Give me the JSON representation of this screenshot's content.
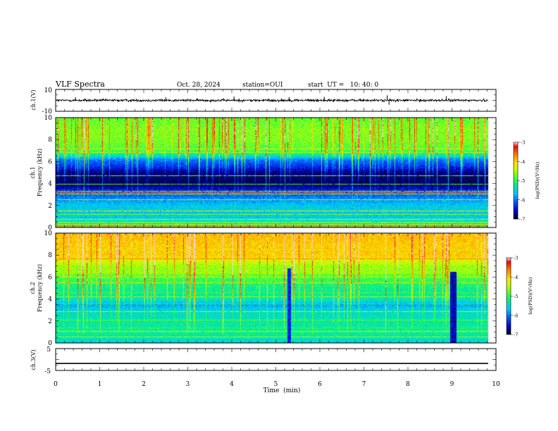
{
  "header": {
    "title": "VLF Spectra",
    "date": "Oct. 28, 2024",
    "station": "station=OUI",
    "start": "start  UT =   10: 40: 0"
  },
  "colors": {
    "frame": "#000000",
    "colormap": [
      "#000033",
      "#0000c8",
      "#0060ff",
      "#00c8ff",
      "#00e0a0",
      "#40ff40",
      "#c8ff00",
      "#ffe000",
      "#ff8000",
      "#ff0000",
      "#ffffff"
    ]
  },
  "chart_data": [
    {
      "type": "line",
      "name": "ch1-waveform",
      "ylabel": "ch.1(V)",
      "ylim": [
        -10,
        10
      ],
      "yticks": [
        "10",
        "-10"
      ],
      "xlim": [
        0,
        10
      ],
      "trace": {
        "x_start": 0,
        "x_end": 9.82,
        "mean": 0,
        "amplitude": 1.5
      },
      "spikes": [
        {
          "x": 4.05,
          "y": 3.5
        },
        {
          "x": 5.3,
          "y": 3.0
        },
        {
          "x": 7.53,
          "y": 4.6
        },
        {
          "x": 7.57,
          "y": -4.0
        },
        {
          "x": 8.87,
          "y": 3.8
        },
        {
          "x": 0.45,
          "y": 3.0
        },
        {
          "x": 2.5,
          "y": 2.8
        },
        {
          "x": 6.1,
          "y": 3.2
        }
      ]
    },
    {
      "type": "heatmap",
      "name": "ch1-spectrogram",
      "ylabel": "Frequency (kHz)",
      "ylabel_prefix": "ch.1",
      "xlim": [
        0,
        10
      ],
      "ylim": [
        0,
        10
      ],
      "yticks": [
        "0",
        "2",
        "4",
        "6",
        "8",
        "10"
      ],
      "data_end_min": 9.82,
      "profile_log_psd": [
        {
          "f": 0,
          "v": -5.0
        },
        {
          "f": 1.0,
          "v": -5.6
        },
        {
          "f": 2.0,
          "v": -5.6
        },
        {
          "f": 3.0,
          "v": -6.1
        },
        {
          "f": 4.0,
          "v": -6.9
        },
        {
          "f": 5.0,
          "v": -6.8
        },
        {
          "f": 5.5,
          "v": -6.4
        },
        {
          "f": 6.2,
          "v": -6.0
        },
        {
          "f": 6.6,
          "v": -5.3
        },
        {
          "f": 7.0,
          "v": -4.9
        },
        {
          "f": 8.0,
          "v": -4.7
        },
        {
          "f": 9.0,
          "v": -4.7
        },
        {
          "f": 10.0,
          "v": -4.8
        }
      ],
      "lines": [
        {
          "f": 0.1,
          "v": -3.6
        },
        {
          "f": 0.3,
          "v": -4.0
        },
        {
          "f": 0.5,
          "v": -4.4
        },
        {
          "f": 0.75,
          "v": -4.2
        },
        {
          "f": 1.25,
          "v": -4.6
        },
        {
          "f": 1.55,
          "v": -4.4
        },
        {
          "f": 2.55,
          "v": -4.2
        },
        {
          "f": 3.05,
          "v": -4.4
        },
        {
          "f": 3.2,
          "v": -3.7
        },
        {
          "f": 3.35,
          "v": -4.6
        },
        {
          "f": 4.0,
          "v": -4.9
        },
        {
          "f": 4.75,
          "v": -4.8
        },
        {
          "f": 6.85,
          "v": -4.5
        },
        {
          "f": 7.2,
          "v": -4.3
        },
        {
          "f": 8.9,
          "v": -4.6
        }
      ],
      "colorbar": {
        "label": "log(PSD)(V²/Hz)",
        "range": [
          -7,
          -3
        ],
        "ticks": [
          "-3",
          "-4",
          "-5",
          "-6",
          "-7"
        ]
      }
    },
    {
      "type": "heatmap",
      "name": "ch2-spectrogram",
      "ylabel": "Frequency (kHz)",
      "ylabel_prefix": "ch.2",
      "xlim": [
        0,
        10
      ],
      "ylim": [
        0,
        10
      ],
      "yticks": [
        "0",
        "2",
        "4",
        "6",
        "8",
        "10"
      ],
      "data_end_min": 9.82,
      "profile_log_psd": [
        {
          "f": 0,
          "v": -5.5
        },
        {
          "f": 1.0,
          "v": -5.2
        },
        {
          "f": 2.0,
          "v": -5.3
        },
        {
          "f": 3.0,
          "v": -5.5
        },
        {
          "f": 3.5,
          "v": -5.8
        },
        {
          "f": 4.0,
          "v": -5.3
        },
        {
          "f": 5.0,
          "v": -5.2
        },
        {
          "f": 6.0,
          "v": -4.9
        },
        {
          "f": 6.5,
          "v": -4.6
        },
        {
          "f": 7.0,
          "v": -4.6
        },
        {
          "f": 7.5,
          "v": -4.3
        },
        {
          "f": 8.0,
          "v": -4.0
        },
        {
          "f": 9.0,
          "v": -4.0
        },
        {
          "f": 10.0,
          "v": -3.9
        }
      ],
      "lines": [
        {
          "f": 0.6,
          "v": -4.6
        },
        {
          "f": 1.1,
          "v": -4.5
        },
        {
          "f": 1.4,
          "v": -5.0
        },
        {
          "f": 2.1,
          "v": -4.8
        },
        {
          "f": 2.9,
          "v": -4.5
        },
        {
          "f": 3.6,
          "v": -5.1
        },
        {
          "f": 4.2,
          "v": -4.6
        },
        {
          "f": 4.6,
          "v": -4.9
        },
        {
          "f": 5.5,
          "v": -4.4
        },
        {
          "f": 6.0,
          "v": -4.3
        },
        {
          "f": 6.5,
          "v": -4.5
        },
        {
          "f": 7.7,
          "v": -3.6
        },
        {
          "f": 8.5,
          "v": -4.4
        }
      ],
      "events": [
        {
          "t_start": 5.25,
          "t_end": 5.33,
          "f_max": 6.8,
          "v": -6.4
        },
        {
          "t_start": 8.95,
          "t_end": 9.1,
          "f_max": 6.5,
          "v": -6.6
        }
      ],
      "colorbar": {
        "label": "log(PSD)(V²/Hz)",
        "range": [
          -7,
          -3
        ],
        "ticks": [
          "-3",
          "-4",
          "-5",
          "-6",
          "-7"
        ]
      }
    },
    {
      "type": "line",
      "name": "ch3-waveform",
      "ylabel": "ch.3(V)",
      "ylim": [
        -5,
        5
      ],
      "yticks": [
        "5",
        "-5"
      ],
      "xlim": [
        0,
        10
      ],
      "trace": {
        "x_start": 0,
        "x_end": 9.82,
        "value": -1.8
      }
    }
  ],
  "time_axis": {
    "label": "Time  (min)",
    "ticks": [
      "0",
      "1",
      "2",
      "3",
      "4",
      "5",
      "6",
      "7",
      "8",
      "9",
      "10"
    ]
  }
}
